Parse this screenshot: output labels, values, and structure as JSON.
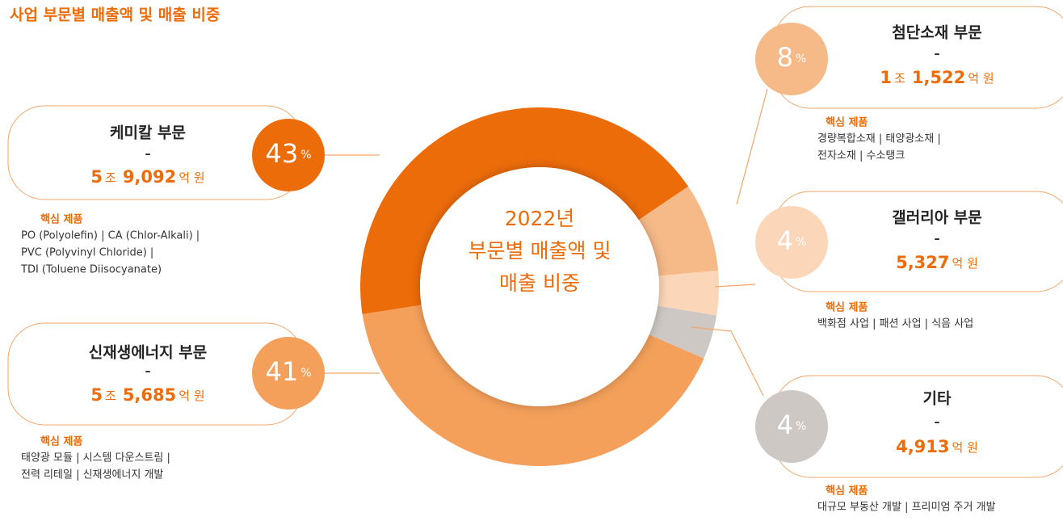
{
  "chart_data": {
    "type": "donut",
    "title": "사업 부문별 매출액 및 매출 비중",
    "center_text": [
      "2022년",
      "부문별 매출액 및",
      "매출 비중"
    ],
    "unit": "%",
    "separator": "–",
    "products_label": "핵심 제품",
    "categories": [
      "케미칼 부문",
      "첨단소재 부문",
      "갤러리아 부문",
      "기타",
      "신재생에너지 부문"
    ],
    "values": [
      43,
      8,
      4,
      4,
      41
    ],
    "colors": [
      "#ec6c0a",
      "#f6b988",
      "#fcd6b8",
      "#cdc8c4",
      "#f4a05a"
    ],
    "amounts": [
      [
        [
          "5",
          "조"
        ],
        [
          "9,092",
          "억 원"
        ]
      ],
      [
        [
          "1",
          "조"
        ],
        [
          "1,522",
          "억 원"
        ]
      ],
      [
        [
          "5,327",
          "억 원"
        ]
      ],
      [
        [
          "4,913",
          "억 원"
        ]
      ],
      [
        [
          "5",
          "조"
        ],
        [
          "5,685",
          "억 원"
        ]
      ]
    ],
    "products": [
      [
        "PO (Polyolefin) | CA (Chlor-Alkali) |",
        "PVC (Polyvinyl Chloride) |",
        "TDI (Toluene Diisocyanate)"
      ],
      [
        "경량복합소재 | 태양광소재 |",
        "전자소재 | 수소탱크"
      ],
      [
        "백화점 사업 | 패션 사업 | 식음 사업"
      ],
      [
        "대규모 부동산 개발 | 프리미엄 주거 개발"
      ],
      [
        "태양광 모듈 | 시스템 다운스트림 |",
        "전력 리테일 | 신재생에너지 개발"
      ]
    ]
  }
}
